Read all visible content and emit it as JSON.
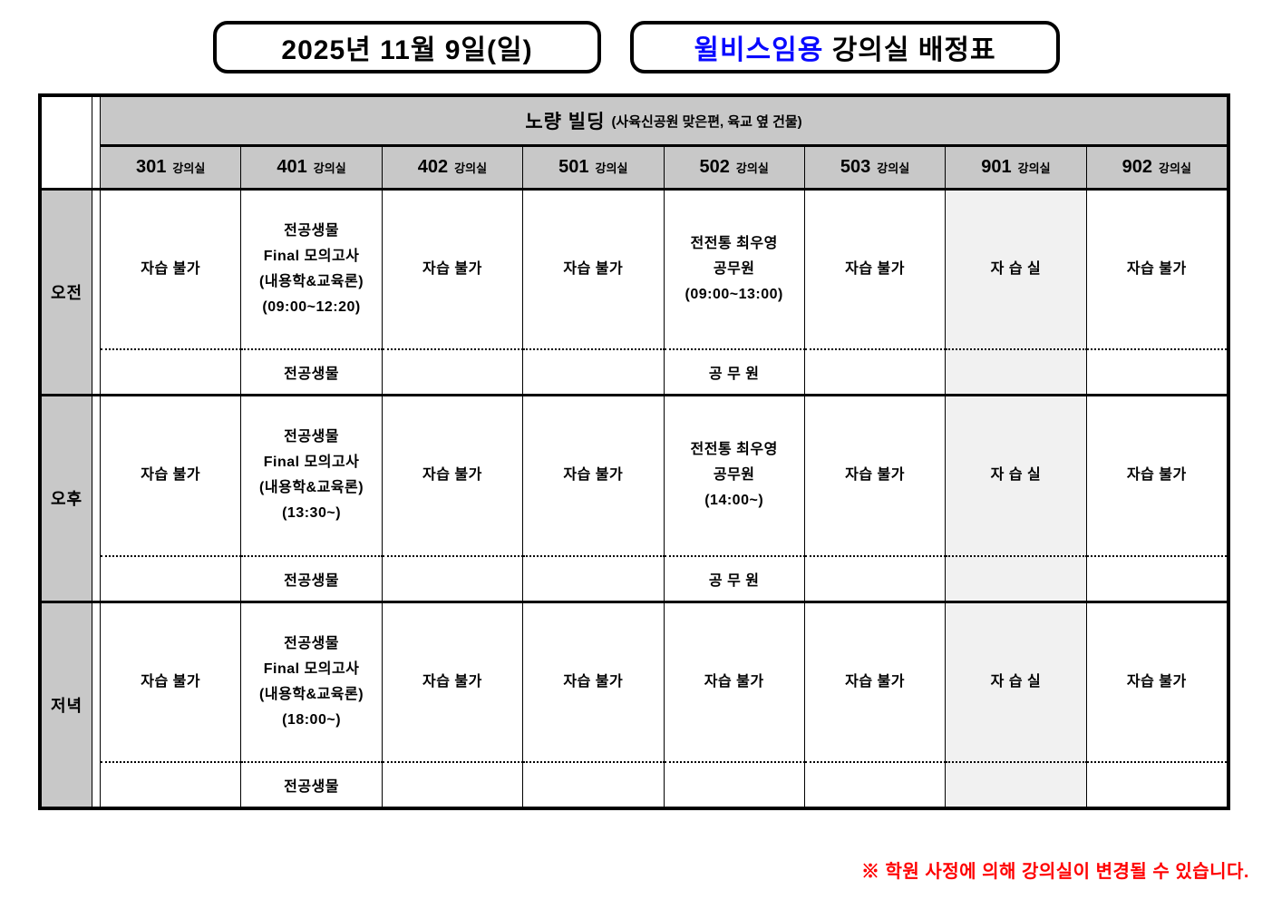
{
  "header": {
    "date_box": "2025년 11월 9일(일)",
    "title_brand": "윌비스임용",
    "title_rest": " 강의실 배정표"
  },
  "building": {
    "name": "노량 빌딩",
    "note": "(사육신공원 맞은편, 육교 옆 건물)"
  },
  "rooms": [
    {
      "number": "301",
      "suffix": "강의실"
    },
    {
      "number": "401",
      "suffix": "강의실"
    },
    {
      "number": "402",
      "suffix": "강의실"
    },
    {
      "number": "501",
      "suffix": "강의실"
    },
    {
      "number": "502",
      "suffix": "강의실"
    },
    {
      "number": "503",
      "suffix": "강의실"
    },
    {
      "number": "901",
      "suffix": "강의실"
    },
    {
      "number": "902",
      "suffix": "강의실"
    }
  ],
  "rows": [
    {
      "label": "오전",
      "cells": [
        {
          "lines": [
            "자습 불가"
          ],
          "sub": ""
        },
        {
          "lines": [
            "전공생물",
            "Final 모의고사",
            "(내용학&교육론)",
            "(09:00~12:20)"
          ],
          "sub": "전공생물"
        },
        {
          "lines": [
            "자습 불가"
          ],
          "sub": ""
        },
        {
          "lines": [
            "자습 불가"
          ],
          "sub": ""
        },
        {
          "lines": [
            "전전통 최우영",
            "공무원",
            "(09:00~13:00)"
          ],
          "sub": "공 무 원"
        },
        {
          "lines": [
            "자습 불가"
          ],
          "sub": ""
        },
        {
          "lines": [
            "자 습 실"
          ],
          "sub": ""
        },
        {
          "lines": [
            "자습 불가"
          ],
          "sub": ""
        }
      ]
    },
    {
      "label": "오후",
      "cells": [
        {
          "lines": [
            "자습 불가"
          ],
          "sub": ""
        },
        {
          "lines": [
            "전공생물",
            "Final 모의고사",
            "(내용학&교육론)",
            "(13:30~)"
          ],
          "sub": "전공생물"
        },
        {
          "lines": [
            "자습 불가"
          ],
          "sub": ""
        },
        {
          "lines": [
            "자습 불가"
          ],
          "sub": ""
        },
        {
          "lines": [
            "전전통 최우영",
            "공무원",
            "(14:00~)"
          ],
          "sub": "공 무 원"
        },
        {
          "lines": [
            "자습 불가"
          ],
          "sub": ""
        },
        {
          "lines": [
            "자 습 실"
          ],
          "sub": ""
        },
        {
          "lines": [
            "자습 불가"
          ],
          "sub": ""
        }
      ]
    },
    {
      "label": "저녁",
      "cells": [
        {
          "lines": [
            "자습 불가"
          ],
          "sub": ""
        },
        {
          "lines": [
            "전공생물",
            "Final 모의고사",
            "(내용학&교육론)",
            "(18:00~)"
          ],
          "sub": "전공생물"
        },
        {
          "lines": [
            "자습 불가"
          ],
          "sub": ""
        },
        {
          "lines": [
            "자습 불가"
          ],
          "sub": ""
        },
        {
          "lines": [
            "자습 불가"
          ],
          "sub": ""
        },
        {
          "lines": [
            "자습 불가"
          ],
          "sub": ""
        },
        {
          "lines": [
            "자 습 실"
          ],
          "sub": ""
        },
        {
          "lines": [
            "자습 불가"
          ],
          "sub": ""
        }
      ]
    }
  ],
  "footer": {
    "note": "※ 학원 사정에 의해 강의실이 변경될 수 있습니다."
  },
  "colors": {
    "accent_blue": "#0909ff",
    "note_red": "#ff0000",
    "header_gray": "#c8c8c8",
    "shade_gray": "#f1f1f1"
  }
}
